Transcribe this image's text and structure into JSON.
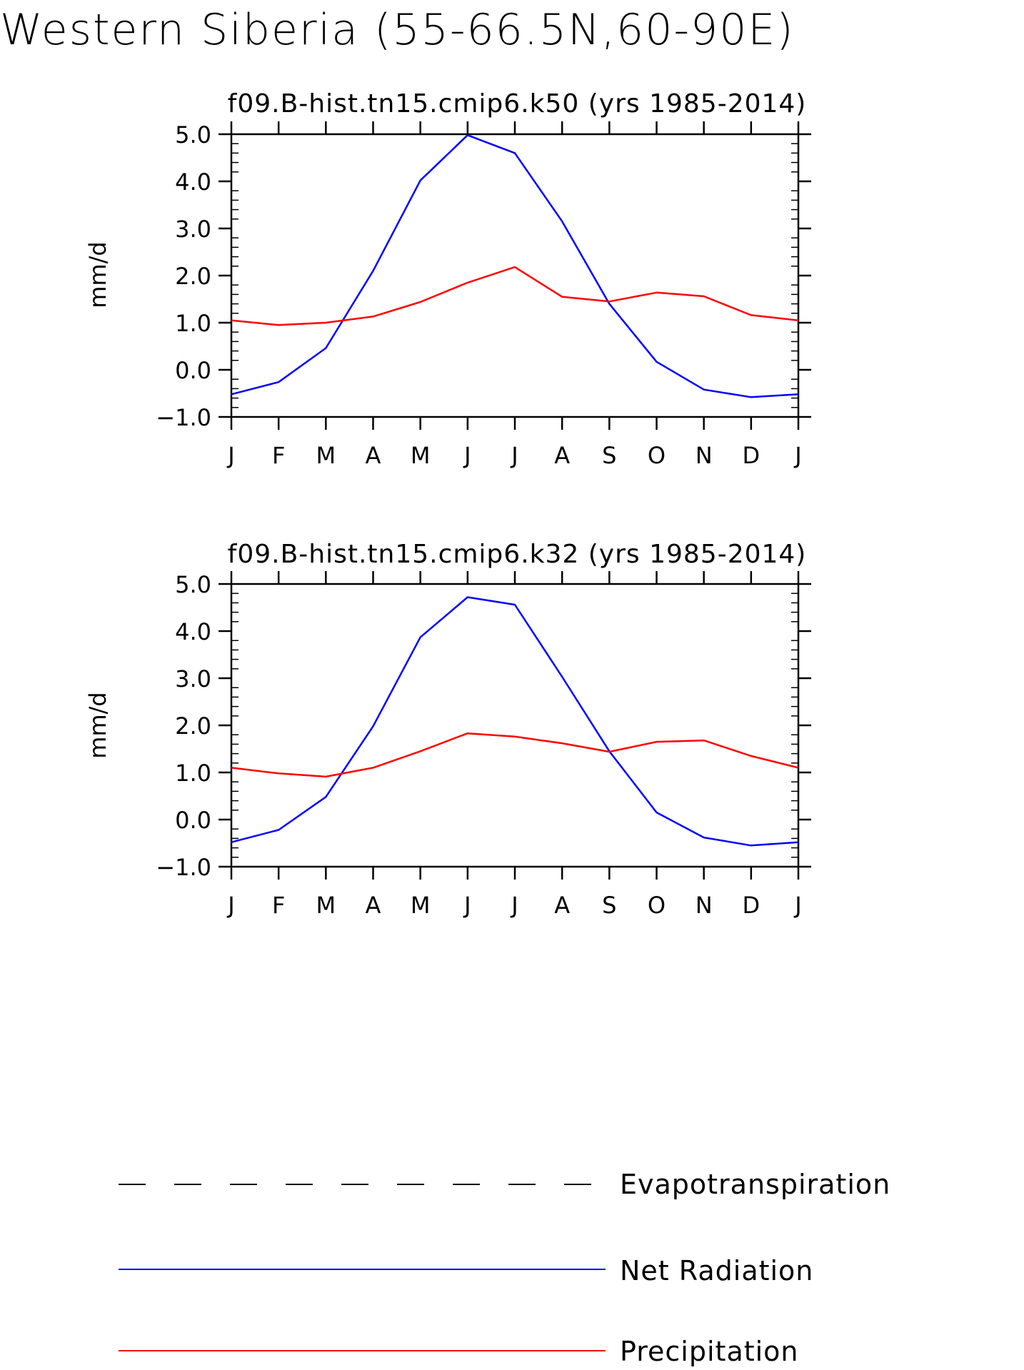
{
  "figure": {
    "title": "Western Siberia (55-66.5N,60-90E)"
  },
  "colors": {
    "net_radiation": "#0000ff",
    "precipitation": "#ff0000",
    "evapotranspiration": "#000000",
    "axes": "#000000"
  },
  "legend": {
    "items": [
      {
        "key": "evapotranspiration",
        "label": "Evapotranspiration",
        "style": "dashed"
      },
      {
        "key": "net_radiation",
        "label": "Net Radiation",
        "style": "solid"
      },
      {
        "key": "precipitation",
        "label": "Precipitation",
        "style": "solid"
      }
    ]
  },
  "chart_data": [
    {
      "type": "line",
      "title": "f09.B-hist.tn15.cmip6.k50 (yrs 1985-2014)",
      "ylabel": "mm/d",
      "xlabel": "",
      "categories": [
        "J",
        "F",
        "M",
        "A",
        "M",
        "J",
        "J",
        "A",
        "S",
        "O",
        "N",
        "D",
        "J"
      ],
      "ylim": [
        -1.0,
        5.0
      ],
      "yticks": [
        "5.0",
        "4.0",
        "3.0",
        "2.0",
        "1.0",
        "0.0",
        "-1.0"
      ],
      "grid": false,
      "legend_position": "bottom",
      "series": [
        {
          "name": "Net Radiation",
          "color": "#0000ff",
          "values": [
            -0.52,
            -0.26,
            0.46,
            2.1,
            4.02,
            4.98,
            4.6,
            3.15,
            1.4,
            0.17,
            -0.42,
            -0.58,
            -0.52
          ]
        },
        {
          "name": "Precipitation",
          "color": "#ff0000",
          "values": [
            1.05,
            0.95,
            1.0,
            1.13,
            1.44,
            1.85,
            2.18,
            1.55,
            1.45,
            1.64,
            1.56,
            1.16,
            1.05
          ]
        }
      ]
    },
    {
      "type": "line",
      "title": "f09.B-hist.tn15.cmip6.k32 (yrs 1985-2014)",
      "ylabel": "mm/d",
      "xlabel": "",
      "categories": [
        "J",
        "F",
        "M",
        "A",
        "M",
        "J",
        "J",
        "A",
        "S",
        "O",
        "N",
        "D",
        "J"
      ],
      "ylim": [
        -1.0,
        5.0
      ],
      "yticks": [
        "5.0",
        "4.0",
        "3.0",
        "2.0",
        "1.0",
        "0.0",
        "-1.0"
      ],
      "grid": false,
      "legend_position": "bottom",
      "series": [
        {
          "name": "Net Radiation",
          "color": "#0000ff",
          "values": [
            -0.48,
            -0.22,
            0.48,
            1.98,
            3.87,
            4.72,
            4.56,
            3.03,
            1.45,
            0.15,
            -0.38,
            -0.55,
            -0.48
          ]
        },
        {
          "name": "Precipitation",
          "color": "#ff0000",
          "values": [
            1.1,
            0.98,
            0.91,
            1.1,
            1.45,
            1.83,
            1.76,
            1.62,
            1.44,
            1.65,
            1.68,
            1.35,
            1.1
          ]
        }
      ]
    }
  ]
}
